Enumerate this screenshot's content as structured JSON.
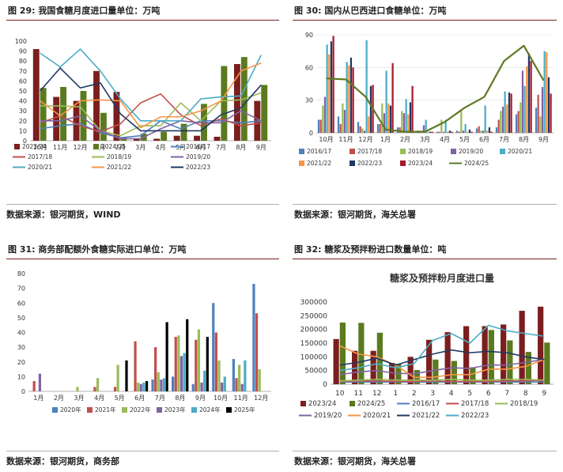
{
  "figures": [
    {
      "label": "图 29:",
      "title": "我国食糖月度进口量单位：万吨",
      "source": "数据来源：银河期货，WIND"
    },
    {
      "label": "图 30:",
      "title": "国内从巴西进口食糖单位：万吨",
      "source": "数据来源：银河期货，海关总署"
    },
    {
      "label": "图 31:",
      "title": "商务部配额外食糖实际进口单位：万吨",
      "source": "数据来源：银河期货，商务部"
    },
    {
      "label": "图 32:",
      "title": "糖浆及预拌粉进口数量单位：吨",
      "source": "数据来源：银河期货，海关总署"
    }
  ],
  "chart_data": [
    {
      "type": "bar",
      "title": "",
      "categories": [
        "10月",
        "11月",
        "12月",
        "1月",
        "2月",
        "3月",
        "4月",
        "5月",
        "6月",
        "7月",
        "8月",
        "9月"
      ],
      "ylim": [
        0,
        100
      ],
      "yticks": [
        0,
        10,
        20,
        30,
        40,
        50,
        60,
        70,
        80,
        90,
        100
      ],
      "grid": false,
      "legend_position": "bottom",
      "legend_order": [
        "2023/24",
        "2024/25",
        "2016/17",
        "2017/18",
        "2018/19",
        "2019/20",
        "2020/21",
        "2021/22",
        "2022/23"
      ],
      "bar_series": [
        {
          "name": "2023/24",
          "color": "#7b1e1e",
          "values": [
            92,
            44,
            40,
            70,
            49,
            2,
            2,
            5,
            5,
            4,
            77,
            40
          ]
        },
        {
          "name": "2024/25",
          "color": "#5b7a1f",
          "values": [
            53,
            54,
            50,
            28,
            3,
            7,
            9,
            17,
            37,
            75,
            84,
            56
          ]
        }
      ],
      "line_series": [
        {
          "name": "2016/17",
          "color": "#4f81bd",
          "values": [
            12,
            15,
            17,
            8,
            3,
            5,
            20,
            12,
            20,
            20,
            18,
            20
          ]
        },
        {
          "name": "2017/18",
          "color": "#c0504d",
          "values": [
            18,
            25,
            15,
            9,
            17,
            38,
            47,
            26,
            15,
            22,
            15,
            18
          ]
        },
        {
          "name": "2018/19",
          "color": "#9bbb59",
          "values": [
            35,
            35,
            34,
            10,
            5,
            15,
            15,
            38,
            20,
            40,
            41,
            48
          ]
        },
        {
          "name": "2019/20",
          "color": "#8064a2",
          "values": [
            20,
            20,
            25,
            10,
            2,
            2,
            12,
            20,
            18,
            18,
            30,
            20
          ]
        },
        {
          "name": "2020/21",
          "color": "#4bacc6",
          "values": [
            88,
            74,
            92,
            70,
            42,
            20,
            20,
            20,
            42,
            44,
            45,
            86
          ]
        },
        {
          "name": "2021/22",
          "color": "#f79646",
          "values": [
            40,
            25,
            40,
            41,
            40,
            13,
            24,
            24,
            30,
            40,
            70,
            78
          ]
        },
        {
          "name": "2022/23",
          "color": "#1f3864",
          "values": [
            50,
            73,
            53,
            58,
            27,
            10,
            10,
            10,
            10,
            26,
            33,
            56
          ]
        }
      ]
    },
    {
      "type": "bar",
      "title": "",
      "categories": [
        "10月",
        "11月",
        "12月",
        "1月",
        "2月",
        "3月",
        "4月",
        "5月",
        "6月",
        "7月",
        "8月",
        "9月"
      ],
      "ylim": [
        0,
        90
      ],
      "yticks": [
        0,
        30,
        60,
        90
      ],
      "grid": true,
      "legend_position": "bottom",
      "legend_order": [
        "2016/17",
        "2017/18",
        "2018/19",
        "2019/20",
        "2020/21",
        "2021/22",
        "2022/23",
        "2023/24",
        "2024/25"
      ],
      "bar_series": [
        {
          "name": "2016/17",
          "color": "#4f81bd",
          "values": [
            12,
            15,
            10,
            8,
            5,
            2,
            1,
            2,
            4,
            5,
            17,
            23
          ]
        },
        {
          "name": "2017/18",
          "color": "#c0504d",
          "values": [
            12,
            8,
            6,
            8,
            5,
            2,
            1,
            1,
            6,
            12,
            20,
            35
          ]
        },
        {
          "name": "2018/19",
          "color": "#9bbb59",
          "values": [
            25,
            27,
            4,
            27,
            20,
            1,
            12,
            20,
            2,
            20,
            28,
            15
          ]
        },
        {
          "name": "2019/20",
          "color": "#8064a2",
          "values": [
            33,
            21,
            2,
            18,
            18,
            7,
            1,
            2,
            2,
            24,
            57,
            42
          ]
        },
        {
          "name": "2020/21",
          "color": "#4bacc6",
          "values": [
            81,
            65,
            85,
            57,
            31,
            12,
            12,
            8,
            25,
            38,
            43,
            75
          ]
        },
        {
          "name": "2021/22",
          "color": "#f79646",
          "values": [
            72,
            62,
            15,
            27,
            17,
            1,
            1,
            1,
            2,
            26,
            61,
            74
          ]
        },
        {
          "name": "2022/23",
          "color": "#1f3864",
          "values": [
            84,
            69,
            43,
            25,
            28,
            1,
            2,
            3,
            5,
            37,
            73,
            51
          ]
        },
        {
          "name": "2023/24",
          "color": "#a6192e",
          "values": [
            89,
            60,
            44,
            64,
            43,
            1,
            1,
            1,
            1,
            36,
            66,
            36
          ]
        }
      ],
      "line_series": [
        {
          "name": "2024/25",
          "color": "#5e7a24",
          "values": [
            50,
            49,
            33,
            3,
            1,
            1,
            10,
            23,
            33,
            66,
            80,
            48
          ]
        }
      ]
    },
    {
      "type": "bar",
      "title": "",
      "categories": [
        "1月",
        "2月",
        "3月",
        "4月",
        "5月",
        "6月",
        "7月",
        "8月",
        "9月",
        "10月",
        "11月",
        "12月"
      ],
      "ylim": [
        0,
        80
      ],
      "yticks": [
        0,
        10,
        20,
        30,
        40,
        50,
        60,
        70,
        80
      ],
      "grid": false,
      "legend_position": "bottom",
      "legend_order": [
        "2020年",
        "2021年",
        "2022年",
        "2023年",
        "2024年",
        "2025年"
      ],
      "bar_series": [
        {
          "name": "2020年",
          "color": "#4f81bd",
          "values": [
            0,
            0,
            0,
            0,
            0,
            0,
            8,
            10,
            5,
            60,
            22,
            73
          ]
        },
        {
          "name": "2021年",
          "color": "#c0504d",
          "values": [
            7,
            0,
            0,
            3,
            3,
            34,
            30,
            37,
            35,
            40,
            9,
            53
          ]
        },
        {
          "name": "2022年",
          "color": "#9bbb59",
          "values": [
            0,
            0,
            3,
            9,
            18,
            6,
            13,
            38,
            42,
            21,
            18,
            15
          ]
        },
        {
          "name": "2023年",
          "color": "#8064a2",
          "values": [
            12,
            0,
            0,
            0,
            0,
            5,
            8,
            24,
            6,
            6,
            5,
            0
          ]
        },
        {
          "name": "2024年",
          "color": "#4bacc6",
          "values": [
            0,
            0,
            0,
            0,
            0,
            6,
            9,
            26,
            14,
            10,
            21,
            0
          ]
        },
        {
          "name": "2025年",
          "color": "#000000",
          "values": [
            0,
            0,
            0,
            0,
            21,
            7,
            47,
            49,
            37,
            0,
            0,
            0
          ]
        }
      ],
      "line_series": []
    },
    {
      "type": "bar",
      "title": "糖浆及预拌粉月度进口量",
      "categories": [
        "10",
        "11",
        "12",
        "1",
        "2",
        "3",
        "4",
        "5",
        "6",
        "7",
        "8",
        "9"
      ],
      "ylim": [
        0,
        300000
      ],
      "yticks": [
        0,
        50000,
        100000,
        150000,
        200000,
        250000,
        300000
      ],
      "grid": false,
      "legend_position": "bottom",
      "legend_order": [
        "2023/24",
        "2024/25",
        "2016/17",
        "2017/18",
        "2018/19",
        "2019/20",
        "2020/21",
        "2021/22",
        "2022/23"
      ],
      "bar_series": [
        {
          "name": "2023/24",
          "color": "#7b1e1e",
          "values": [
            165000,
            122000,
            122000,
            78000,
            100000,
            162000,
            190000,
            212000,
            212000,
            218000,
            268000,
            283000
          ]
        },
        {
          "name": "2024/25",
          "color": "#5b7a1f",
          "values": [
            225000,
            224000,
            188000,
            75000,
            52000,
            90000,
            85000,
            62000,
            198000,
            160000,
            118000,
            152000
          ]
        }
      ],
      "line_series": [
        {
          "name": "2016/17",
          "color": "#4f81bd",
          "values": [
            8000,
            8000,
            8000,
            8000,
            8000,
            8000,
            8000,
            8000,
            8000,
            8000,
            8000,
            8000
          ]
        },
        {
          "name": "2017/18",
          "color": "#c0504d",
          "values": [
            10000,
            12000,
            12000,
            10000,
            10000,
            12000,
            10000,
            10000,
            10000,
            12000,
            12000,
            15000
          ]
        },
        {
          "name": "2018/19",
          "color": "#9bbb59",
          "values": [
            12000,
            15000,
            18000,
            15000,
            15000,
            15000,
            18000,
            15000,
            15000,
            18000,
            18000,
            15000
          ]
        },
        {
          "name": "2019/20",
          "color": "#8064a2",
          "values": [
            35000,
            45000,
            50000,
            40000,
            38000,
            50000,
            60000,
            58000,
            70000,
            70000,
            80000,
            90000
          ]
        },
        {
          "name": "2020/21",
          "color": "#f79646",
          "values": [
            140000,
            110000,
            100000,
            70000,
            25000,
            25000,
            35000,
            35000,
            55000,
            55000,
            65000,
            90000
          ]
        },
        {
          "name": "2021/22",
          "color": "#1f3864",
          "values": [
            70000,
            80000,
            95000,
            70000,
            90000,
            110000,
            125000,
            115000,
            120000,
            115000,
            100000,
            90000
          ]
        },
        {
          "name": "2022/23",
          "color": "#4bacc6",
          "values": [
            50000,
            60000,
            75000,
            60000,
            75000,
            160000,
            185000,
            150000,
            215000,
            195000,
            185000,
            175000
          ]
        }
      ]
    }
  ]
}
